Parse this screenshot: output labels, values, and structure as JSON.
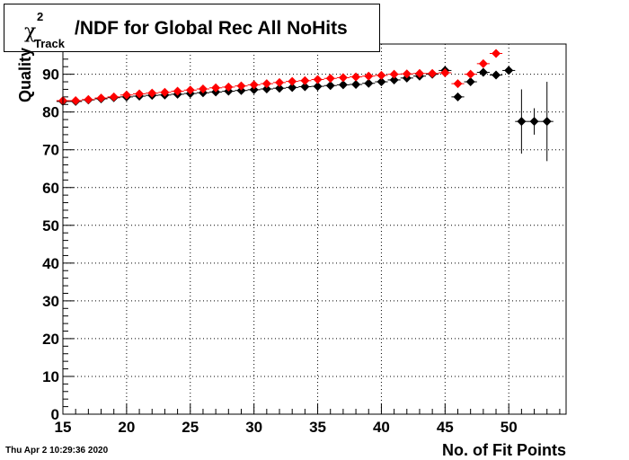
{
  "title": {
    "symbol": "χ",
    "superscript": "2",
    "subscript": "Track",
    "text": "/NDF for Global Rec All NoHits"
  },
  "timestamp": "Thu Apr  2 10:29:36 2020",
  "chart_data": {
    "type": "scatter",
    "title": "χ²_Track/NDF for Global Rec All NoHits",
    "xlabel": "No. of Fit Points",
    "ylabel": "Quality",
    "xlim": [
      15,
      54.5
    ],
    "ylim": [
      0,
      98
    ],
    "x_ticks": [
      15,
      20,
      25,
      30,
      35,
      40,
      45,
      50
    ],
    "y_ticks": [
      0,
      10,
      20,
      30,
      40,
      50,
      60,
      70,
      80,
      90
    ],
    "grid": true,
    "series": [
      {
        "color": "#000000",
        "points": [
          {
            "x": 15,
            "y": 82.8
          },
          {
            "x": 16,
            "y": 82.8
          },
          {
            "x": 17,
            "y": 83.2
          },
          {
            "x": 18,
            "y": 83.5
          },
          {
            "x": 19,
            "y": 83.8
          },
          {
            "x": 20,
            "y": 84.0
          },
          {
            "x": 21,
            "y": 84.2
          },
          {
            "x": 22,
            "y": 84.4
          },
          {
            "x": 23,
            "y": 84.5
          },
          {
            "x": 24,
            "y": 84.7
          },
          {
            "x": 25,
            "y": 84.9
          },
          {
            "x": 26,
            "y": 85.1
          },
          {
            "x": 27,
            "y": 85.3
          },
          {
            "x": 28,
            "y": 85.5
          },
          {
            "x": 29,
            "y": 85.7
          },
          {
            "x": 30,
            "y": 85.9
          },
          {
            "x": 31,
            "y": 86.1
          },
          {
            "x": 32,
            "y": 86.3
          },
          {
            "x": 33,
            "y": 86.5
          },
          {
            "x": 34,
            "y": 86.7
          },
          {
            "x": 35,
            "y": 86.8
          },
          {
            "x": 36,
            "y": 87.0
          },
          {
            "x": 37,
            "y": 87.2
          },
          {
            "x": 38,
            "y": 87.3
          },
          {
            "x": 39,
            "y": 87.6
          },
          {
            "x": 40,
            "y": 88.0
          },
          {
            "x": 41,
            "y": 88.5
          },
          {
            "x": 42,
            "y": 89.0
          },
          {
            "x": 43,
            "y": 89.5
          },
          {
            "x": 44,
            "y": 90.0
          },
          {
            "x": 45,
            "y": 91.0
          },
          {
            "x": 46,
            "y": 84.0
          },
          {
            "x": 47,
            "y": 88.0
          },
          {
            "x": 48,
            "y": 90.5
          },
          {
            "x": 49,
            "y": 89.8
          },
          {
            "x": 50,
            "y": 91.0,
            "err": 1.0
          },
          {
            "x": 51,
            "y": 77.5,
            "err": 8.5
          },
          {
            "x": 52,
            "y": 77.5,
            "err": 3.5
          },
          {
            "x": 53,
            "y": 77.5,
            "err": 10.5
          }
        ]
      },
      {
        "color": "#ff0000",
        "points": [
          {
            "x": 15,
            "y": 83.0
          },
          {
            "x": 16,
            "y": 83.0
          },
          {
            "x": 17,
            "y": 83.3
          },
          {
            "x": 18,
            "y": 83.7
          },
          {
            "x": 19,
            "y": 84.0
          },
          {
            "x": 20,
            "y": 84.5
          },
          {
            "x": 21,
            "y": 84.8
          },
          {
            "x": 22,
            "y": 85.0
          },
          {
            "x": 23,
            "y": 85.2
          },
          {
            "x": 24,
            "y": 85.5
          },
          {
            "x": 25,
            "y": 85.8
          },
          {
            "x": 26,
            "y": 86.1
          },
          {
            "x": 27,
            "y": 86.4
          },
          {
            "x": 28,
            "y": 86.6
          },
          {
            "x": 29,
            "y": 86.9
          },
          {
            "x": 30,
            "y": 87.2
          },
          {
            "x": 31,
            "y": 87.5
          },
          {
            "x": 32,
            "y": 87.8
          },
          {
            "x": 33,
            "y": 88.1
          },
          {
            "x": 34,
            "y": 88.3
          },
          {
            "x": 35,
            "y": 88.6
          },
          {
            "x": 36,
            "y": 88.9
          },
          {
            "x": 37,
            "y": 89.1
          },
          {
            "x": 38,
            "y": 89.3
          },
          {
            "x": 39,
            "y": 89.5
          },
          {
            "x": 40,
            "y": 89.7
          },
          {
            "x": 41,
            "y": 90.0
          },
          {
            "x": 42,
            "y": 90.1
          },
          {
            "x": 43,
            "y": 90.2
          },
          {
            "x": 44,
            "y": 90.2
          },
          {
            "x": 45,
            "y": 90.4
          },
          {
            "x": 46,
            "y": 87.5
          },
          {
            "x": 47,
            "y": 90.0
          },
          {
            "x": 48,
            "y": 92.8
          },
          {
            "x": 49,
            "y": 95.5
          }
        ]
      }
    ]
  }
}
